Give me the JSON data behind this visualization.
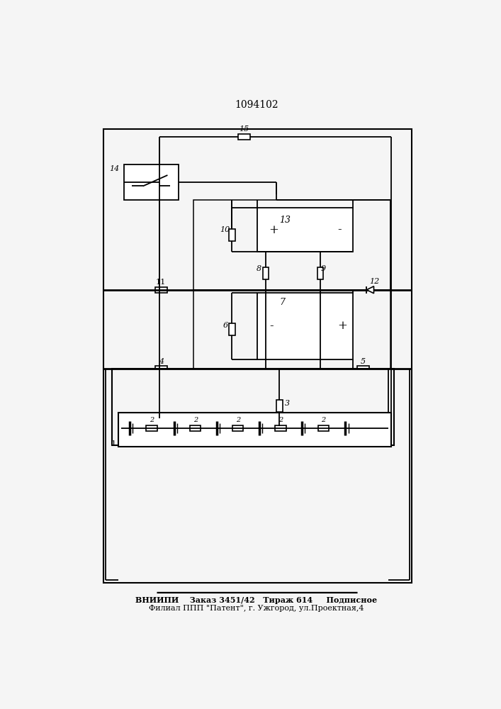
{
  "title": "1094102",
  "bg_color": "#f5f5f5",
  "line_color": "#000000",
  "footer_line1": "ВНИИПИ    Заказ 3451/42   Тираж 614     Подписное",
  "footer_line2": "Филиал ППП \"Патент\", г. Ужгород, ул.Проектная,4"
}
